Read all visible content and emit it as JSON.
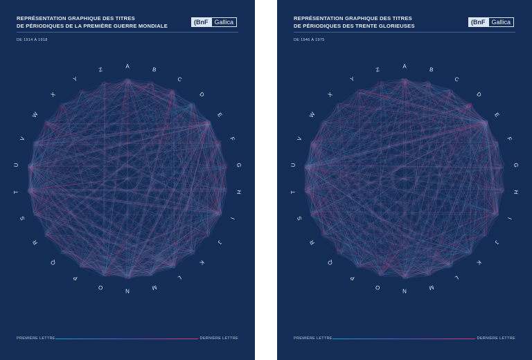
{
  "colors": {
    "background": "#132d57",
    "start": "#1da3d6",
    "end": "#e8336a",
    "text": "#e6ecf7"
  },
  "posters": [
    {
      "title_line1": "REPRÉSENTATION GRAPHIQUE DES TITRES",
      "title_line2": "DE PÉRIODIQUES DE LA PREMIÈRE GUERRE MONDIALE",
      "date_range": "DE 1914 À 1918",
      "logo_bnf": "(BnF",
      "logo_gallica": "Gallica",
      "legend_first": "PREMIÈRE LETTRE",
      "legend_last": "DERNIÈRE LETTRE"
    },
    {
      "title_line1": "REPRÉSENTATION GRAPHIQUE DES TITRES",
      "title_line2": "DE PÉRIODIQUES DES TRENTE GLORIEUSES",
      "date_range": "DE 1946 À 1975",
      "logo_bnf": "(BnF",
      "logo_gallica": "Gallica",
      "legend_first": "PREMIÈRE LETTRE",
      "legend_last": "DERNIÈRE LETTRE"
    }
  ],
  "letters": [
    "A",
    "B",
    "C",
    "D",
    "E",
    "F",
    "G",
    "H",
    "I",
    "J",
    "K",
    "L",
    "M",
    "N",
    "O",
    "P",
    "Q",
    "R",
    "S",
    "T",
    "U",
    "V",
    "W",
    "X",
    "Y",
    "Z"
  ]
}
